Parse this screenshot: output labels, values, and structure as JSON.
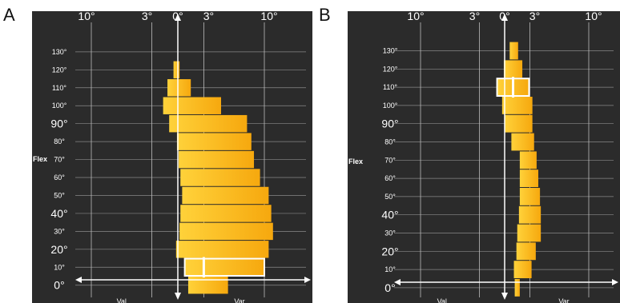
{
  "chart_data": [
    {
      "type": "bar",
      "panel_label": "A",
      "orientation": "horizontal",
      "y_axis_label": "Flex",
      "x_left_label": "Val.",
      "x_right_label": "Var.",
      "x_ticks": [
        {
          "label": "10°",
          "value": -10
        },
        {
          "label": "3°",
          "value": -3
        },
        {
          "label": "0°",
          "value": 0
        },
        {
          "label": "3°",
          "value": 3
        },
        {
          "label": "10°",
          "value": 10
        }
      ],
      "y_ticks": [
        {
          "label": "0°",
          "value": 0,
          "size": "large"
        },
        {
          "label": "10°",
          "value": 10,
          "size": "small"
        },
        {
          "label": "20°",
          "value": 20,
          "size": "large"
        },
        {
          "label": "30°",
          "value": 30,
          "size": "small"
        },
        {
          "label": "40°",
          "value": 40,
          "size": "large"
        },
        {
          "label": "50°",
          "value": 50,
          "size": "small"
        },
        {
          "label": "60°",
          "value": 60,
          "size": "small"
        },
        {
          "label": "70°",
          "value": 70,
          "size": "small"
        },
        {
          "label": "80°",
          "value": 80,
          "size": "small"
        },
        {
          "label": "90°",
          "value": 90,
          "size": "large"
        },
        {
          "label": "100°",
          "value": 100,
          "size": "small"
        },
        {
          "label": "110°",
          "value": 110,
          "size": "small"
        },
        {
          "label": "120°",
          "value": 120,
          "size": "small"
        },
        {
          "label": "130°",
          "value": 130,
          "size": "small"
        }
      ],
      "bars": [
        {
          "flex": 0,
          "from": 1.2,
          "to": 5.8
        },
        {
          "flex": 20,
          "from": -0.2,
          "to": 10.5
        },
        {
          "flex": 30,
          "from": 0.2,
          "to": 11.0
        },
        {
          "flex": 40,
          "from": 0.3,
          "to": 10.8
        },
        {
          "flex": 50,
          "from": 0.5,
          "to": 10.5
        },
        {
          "flex": 60,
          "from": 0.3,
          "to": 9.5
        },
        {
          "flex": 70,
          "from": 0.1,
          "to": 8.8
        },
        {
          "flex": 80,
          "from": -0.1,
          "to": 8.5
        },
        {
          "flex": 90,
          "from": -1.0,
          "to": 8.0
        },
        {
          "flex": 100,
          "from": -1.7,
          "to": 5.0
        },
        {
          "flex": 110,
          "from": -1.2,
          "to": 1.5
        },
        {
          "flex": 120,
          "from": -0.5,
          "to": 0.2
        }
      ],
      "highlight": {
        "flex": 10,
        "from": 0.8,
        "to": 10.0,
        "mark": 3.0
      },
      "colors": {
        "background": "#2b2b2b",
        "bar_light": "#ffd23a",
        "bar_dark": "#f6a80e",
        "highlight_outline": "#ffffff"
      }
    },
    {
      "type": "bar",
      "panel_label": "B",
      "orientation": "horizontal",
      "y_axis_label": "Flex",
      "x_left_label": "Val.",
      "x_right_label": "Var.",
      "x_ticks": [
        {
          "label": "10°",
          "value": -10
        },
        {
          "label": "3°",
          "value": -3
        },
        {
          "label": "0°",
          "value": 0
        },
        {
          "label": "3°",
          "value": 3
        },
        {
          "label": "10°",
          "value": 10
        }
      ],
      "y_ticks": [
        {
          "label": "0°",
          "value": 0,
          "size": "large"
        },
        {
          "label": "10°",
          "value": 10,
          "size": "small"
        },
        {
          "label": "20°",
          "value": 20,
          "size": "large"
        },
        {
          "label": "30°",
          "value": 30,
          "size": "small"
        },
        {
          "label": "40°",
          "value": 40,
          "size": "large"
        },
        {
          "label": "50°",
          "value": 50,
          "size": "small"
        },
        {
          "label": "60°",
          "value": 60,
          "size": "small"
        },
        {
          "label": "70°",
          "value": 70,
          "size": "small"
        },
        {
          "label": "80°",
          "value": 80,
          "size": "small"
        },
        {
          "label": "90°",
          "value": 90,
          "size": "large"
        },
        {
          "label": "100°",
          "value": 100,
          "size": "small"
        },
        {
          "label": "110°",
          "value": 110,
          "size": "small"
        },
        {
          "label": "120°",
          "value": 120,
          "size": "small"
        },
        {
          "label": "130°",
          "value": 130,
          "size": "small"
        }
      ],
      "bars": [
        {
          "flex": 0,
          "from": 1.2,
          "to": 1.8
        },
        {
          "flex": 10,
          "from": 1.1,
          "to": 3.2
        },
        {
          "flex": 20,
          "from": 1.4,
          "to": 3.7
        },
        {
          "flex": 30,
          "from": 1.5,
          "to": 4.3
        },
        {
          "flex": 40,
          "from": 1.7,
          "to": 4.3
        },
        {
          "flex": 50,
          "from": 1.8,
          "to": 4.2
        },
        {
          "flex": 60,
          "from": 1.8,
          "to": 4.0
        },
        {
          "flex": 70,
          "from": 1.8,
          "to": 3.8
        },
        {
          "flex": 80,
          "from": 0.8,
          "to": 3.5
        },
        {
          "flex": 90,
          "from": 0.0,
          "to": 3.3
        },
        {
          "flex": 100,
          "from": -0.3,
          "to": 3.3
        },
        {
          "flex": 120,
          "from": -0.1,
          "to": 2.1
        },
        {
          "flex": 130,
          "from": 0.6,
          "to": 1.6
        }
      ],
      "highlight": {
        "flex": 110,
        "from": -0.9,
        "to": 2.9,
        "mark": 1.0
      },
      "colors": {
        "background": "#2b2b2b",
        "bar_light": "#ffd23a",
        "bar_dark": "#f6a80e",
        "highlight_outline": "#ffffff"
      }
    }
  ]
}
